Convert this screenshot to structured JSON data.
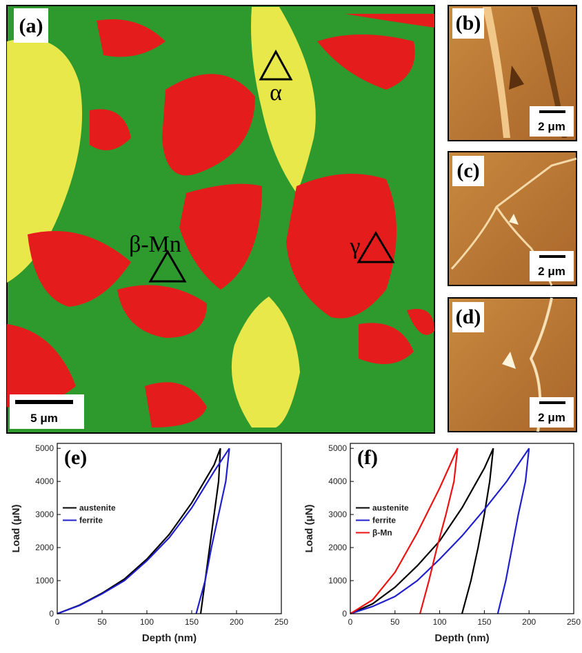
{
  "images": [
    {
      "label": "(a)",
      "annotations": [
        "α",
        "β-Mn",
        "γ"
      ],
      "scale_bar": "5 μm"
    },
    {
      "label": "(b)",
      "scale_bar": "2 μm"
    },
    {
      "label": "(c)",
      "scale_bar": "2 μm"
    },
    {
      "label": "(d)",
      "scale_bar": "2 μm"
    }
  ],
  "chart_data": [
    {
      "type": "line",
      "label": "(e)",
      "x_label": "Depth (nm)",
      "y_label": "Load (μN)",
      "xlim": [
        0,
        250
      ],
      "xticks": [
        0,
        50,
        100,
        150,
        200,
        250
      ],
      "ylim": [
        0,
        5150
      ],
      "yticks": [
        0,
        1000,
        2000,
        3000,
        4000,
        5000
      ],
      "legend": "center left",
      "series": [
        {
          "name": "austenite",
          "color": "#000000",
          "x": [
            0,
            25,
            50,
            75,
            100,
            125,
            150,
            175,
            182,
            180,
            175,
            170,
            165,
            160
          ],
          "values": [
            0,
            260,
            620,
            1050,
            1650,
            2400,
            3350,
            4500,
            5000,
            4000,
            3000,
            2000,
            1000,
            0
          ]
        },
        {
          "name": "ferrite",
          "color": "#1f1fcc",
          "x": [
            0,
            25,
            50,
            75,
            100,
            125,
            150,
            175,
            192,
            188,
            180,
            172,
            165,
            155
          ],
          "values": [
            0,
            250,
            600,
            1000,
            1600,
            2300,
            3200,
            4300,
            5000,
            4000,
            3000,
            2000,
            1000,
            0
          ]
        }
      ]
    },
    {
      "type": "line",
      "label": "(f)",
      "x_label": "Depth (nm)",
      "y_label": "Load (μN)",
      "xlim": [
        0,
        250
      ],
      "xticks": [
        0,
        50,
        100,
        150,
        200,
        250
      ],
      "ylim": [
        0,
        5150
      ],
      "yticks": [
        0,
        1000,
        2000,
        3000,
        4000,
        5000
      ],
      "legend": "center left",
      "series": [
        {
          "name": "austenite",
          "color": "#000000",
          "x": [
            0,
            25,
            50,
            75,
            100,
            125,
            150,
            160,
            156,
            150,
            143,
            135,
            125
          ],
          "values": [
            0,
            300,
            800,
            1450,
            2200,
            3200,
            4400,
            5000,
            4000,
            3000,
            2000,
            1000,
            0
          ]
        },
        {
          "name": "ferrite",
          "color": "#1f1fcc",
          "x": [
            0,
            25,
            50,
            75,
            100,
            125,
            150,
            175,
            200,
            196,
            188,
            181,
            174,
            165
          ],
          "values": [
            0,
            220,
            520,
            1000,
            1650,
            2350,
            3150,
            4000,
            5000,
            4000,
            3000,
            2000,
            1000,
            0
          ]
        },
        {
          "name": "β-Mn",
          "color": "#ee1111",
          "x": [
            0,
            25,
            50,
            75,
            100,
            120,
            116,
            107,
            97,
            88,
            78
          ],
          "values": [
            0,
            420,
            1250,
            2450,
            3800,
            5000,
            4000,
            3000,
            2000,
            1000,
            0
          ]
        }
      ]
    }
  ]
}
